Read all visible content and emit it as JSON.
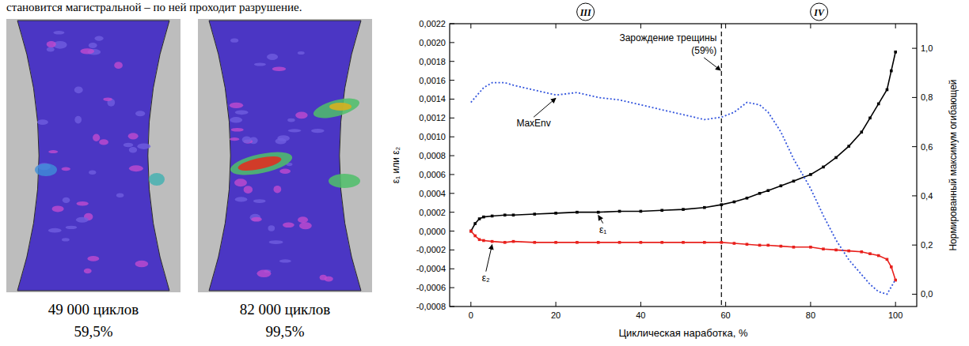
{
  "page": {
    "text": "становится магистральной – по ней проходит разрушение.",
    "images": [
      {
        "caption": [
          "49 000 циклов",
          "59,5%"
        ]
      },
      {
        "caption": [
          "82 000 циклов",
          "99,5%"
        ]
      }
    ]
  },
  "chart_data": {
    "type": "line",
    "x_label": "Циклическая наработка, %",
    "y_label": "ε₁ или ε₂",
    "y2_label": "Нормированный максимум огибающей",
    "stages": [
      "III",
      "IV"
    ],
    "annotations": [
      {
        "x": 59,
        "text": [
          "Зарождение трещины",
          "(59%)"
        ],
        "line_style": "dashed"
      }
    ],
    "x": [
      0,
      1,
      2,
      3,
      5,
      8,
      10,
      15,
      20,
      25,
      30,
      35,
      40,
      45,
      50,
      55,
      59,
      62,
      65,
      68,
      70,
      73,
      76,
      80,
      83,
      86,
      89,
      92,
      94,
      96,
      98,
      99,
      100
    ],
    "series": [
      {
        "name": "ε₁",
        "color": "#000000",
        "marker": "square",
        "line_style": "solid",
        "values": [
          0,
          8e-05,
          0.00013,
          0.00015,
          0.00016,
          0.00017,
          0.00017,
          0.00018,
          0.00019,
          0.0002,
          0.0002,
          0.00021,
          0.00021,
          0.00022,
          0.00023,
          0.00025,
          0.00028,
          0.00031,
          0.00035,
          0.0004,
          0.00043,
          0.00048,
          0.00053,
          0.0006,
          0.00068,
          0.00078,
          0.0009,
          0.00105,
          0.0012,
          0.00135,
          0.0015,
          0.0017,
          0.0019
        ]
      },
      {
        "name": "ε₂",
        "color": "#e8201c",
        "marker": "square",
        "line_style": "solid",
        "values": [
          0,
          -5e-05,
          -9e-05,
          -0.0001,
          -0.00011,
          -0.00012,
          -0.00011,
          -0.00012,
          -0.00012,
          -0.00012,
          -0.00012,
          -0.00012,
          -0.00012,
          -0.00012,
          -0.00012,
          -0.00012,
          -0.00012,
          -0.00013,
          -0.00014,
          -0.00015,
          -0.00015,
          -0.00016,
          -0.00017,
          -0.00017,
          -0.00019,
          -0.0002,
          -0.00021,
          -0.00022,
          -0.00024,
          -0.00026,
          -0.0003,
          -0.00038,
          -0.00052
        ]
      },
      {
        "name": "MaxEnv",
        "color": "#3355dd",
        "line_style": "dotted",
        "axis": "y2",
        "values": [
          0.78,
          0.8,
          0.82,
          0.84,
          0.86,
          0.86,
          0.85,
          0.83,
          0.81,
          0.82,
          0.8,
          0.79,
          0.77,
          0.75,
          0.73,
          0.71,
          0.72,
          0.74,
          0.78,
          0.77,
          0.74,
          0.66,
          0.55,
          0.43,
          0.32,
          0.22,
          0.14,
          0.08,
          0.04,
          0.01,
          0.0,
          0.03,
          0.06
        ]
      }
    ],
    "xlim": [
      -5,
      105
    ],
    "xticks": [
      0,
      20,
      40,
      60,
      80,
      100
    ],
    "ylim": [
      -0.0008,
      0.0022
    ],
    "yticks": [
      {
        "value": -0.0008,
        "label": "-0,0008"
      },
      {
        "value": -0.0006,
        "label": "-0,0006"
      },
      {
        "value": -0.0004,
        "label": "-0,0004"
      },
      {
        "value": -0.0002,
        "label": "-0,0002"
      },
      {
        "value": 0,
        "label": "0,0000"
      },
      {
        "value": 0.0002,
        "label": "0,0002"
      },
      {
        "value": 0.0004,
        "label": "0,0004"
      },
      {
        "value": 0.0006,
        "label": "0,0006"
      },
      {
        "value": 0.0008,
        "label": "0,0008"
      },
      {
        "value": 0.001,
        "label": "0,0010"
      },
      {
        "value": 0.0012,
        "label": "0,0012"
      },
      {
        "value": 0.0014,
        "label": "0,0014"
      },
      {
        "value": 0.0016,
        "label": "0,0016"
      },
      {
        "value": 0.0018,
        "label": "0,0018"
      },
      {
        "value": 0.002,
        "label": "0,0020"
      },
      {
        "value": 0.0022,
        "label": "0,0022"
      }
    ],
    "y2lim": [
      -0.05,
      1.1
    ],
    "y2ticks": [
      {
        "value": 0,
        "label": "0,0"
      },
      {
        "value": 0.2,
        "label": "0,2"
      },
      {
        "value": 0.4,
        "label": "0,4"
      },
      {
        "value": 0.6,
        "label": "0,6"
      },
      {
        "value": 0.8,
        "label": "0,8"
      },
      {
        "value": 1,
        "label": "1,0"
      }
    ],
    "grid": false
  }
}
